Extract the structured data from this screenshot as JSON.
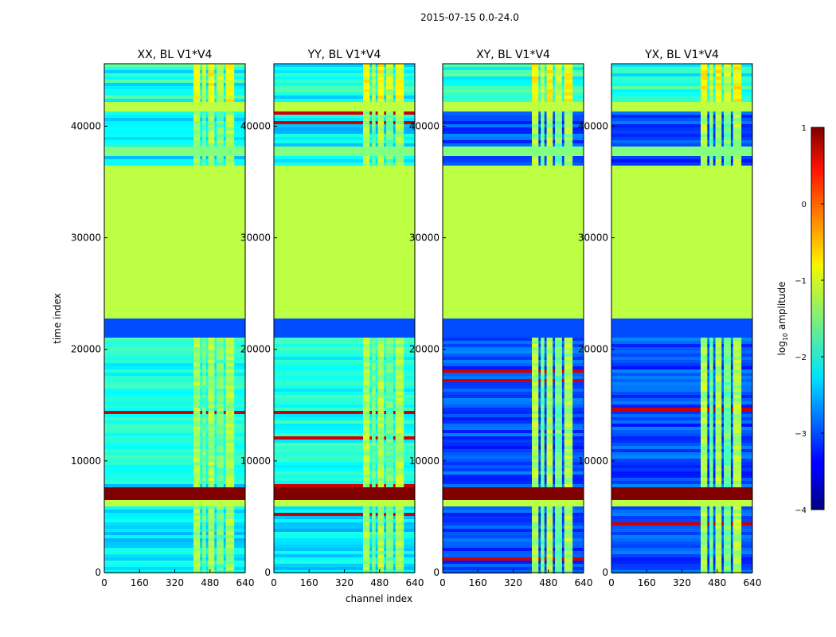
{
  "figure_title": "2015-07-15 0.0-24.0",
  "shared": {
    "xlabel": "channel index",
    "ylabel": "time index",
    "x_ticks": [
      0,
      160,
      320,
      480,
      640
    ],
    "y_ticks": [
      0,
      10000,
      20000,
      30000,
      40000
    ],
    "xlim": [
      0,
      640
    ],
    "ylim": [
      0,
      45600
    ]
  },
  "colorbar": {
    "label": "log₁₀ amplitude",
    "label_base": "log",
    "label_sub": "10",
    "label_rest": " amplitude",
    "range": [
      -4,
      1
    ],
    "ticks": [
      1,
      0,
      -1,
      -2,
      -3,
      -4
    ],
    "tick_labels": [
      "1",
      "0",
      "−1",
      "−2",
      "−3",
      "−4"
    ],
    "colormap": "jet"
  },
  "chart_data": [
    {
      "type": "heatmap",
      "title": "XX, BL V1*V4",
      "xlabel": "",
      "ylabel": "time index",
      "x_ticks": [
        0,
        160,
        320,
        480,
        640
      ],
      "y_ticks": [
        0,
        10000,
        20000,
        30000,
        40000
      ],
      "value_range": [
        -4,
        1
      ],
      "cross_pol": false
    },
    {
      "type": "heatmap",
      "title": "YY, BL V1*V4",
      "xlabel": "channel index",
      "ylabel": "",
      "x_ticks": [
        0,
        160,
        320,
        480,
        640
      ],
      "y_ticks": [
        0,
        10000,
        20000,
        30000,
        40000
      ],
      "value_range": [
        -4,
        1
      ],
      "cross_pol": false
    },
    {
      "type": "heatmap",
      "title": "XY, BL V1*V4",
      "xlabel": "",
      "ylabel": "",
      "x_ticks": [
        0,
        160,
        320,
        480,
        640
      ],
      "y_ticks": [
        0,
        10000,
        20000,
        30000,
        40000
      ],
      "value_range": [
        -4,
        1
      ],
      "cross_pol": true
    },
    {
      "type": "heatmap",
      "title": "YX, BL V1*V4",
      "xlabel": "",
      "ylabel": "",
      "x_ticks": [
        0,
        160,
        320,
        480,
        640
      ],
      "y_ticks": [
        0,
        10000,
        20000,
        30000,
        40000
      ],
      "value_range": [
        -4,
        1
      ],
      "cross_pol": true
    }
  ],
  "colors": {
    "flagged_fill": "#99ff5c",
    "high_amp": "#800000",
    "low_amp": "#0a2fd6"
  }
}
